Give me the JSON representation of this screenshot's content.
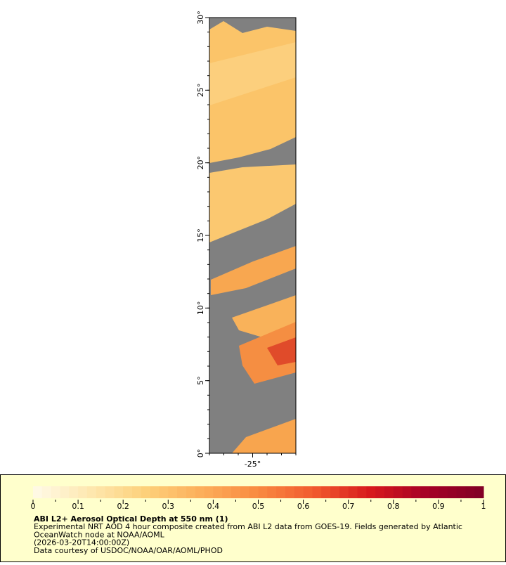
{
  "map": {
    "ylim": [
      0,
      30
    ],
    "xlim": [
      -28,
      -22
    ],
    "yticks": [
      {
        "value": 0,
        "label": "0°"
      },
      {
        "value": 5,
        "label": "5°"
      },
      {
        "value": 10,
        "label": "10°"
      },
      {
        "value": 15,
        "label": "15°"
      },
      {
        "value": 20,
        "label": "20°"
      },
      {
        "value": 25,
        "label": "25°"
      },
      {
        "value": 30,
        "label": "30°"
      }
    ],
    "xticks": [
      {
        "value": -25,
        "label": "-25°"
      }
    ]
  },
  "colorbar": {
    "range": [
      0,
      1
    ],
    "ticks": [
      0,
      0.1,
      0.2,
      0.3,
      0.4,
      0.5,
      0.6,
      0.7,
      0.8,
      0.9,
      1
    ],
    "palette": [
      "#fffbe8",
      "#fee8b0",
      "#fdd07a",
      "#fcae5a",
      "#f98a40",
      "#f15a2e",
      "#d7191c",
      "#a50026",
      "#800026"
    ]
  },
  "legend": {
    "title": "ABI L2+ Aerosol Optical Depth at 550 nm (1)",
    "lines": [
      "Experimental NRT AOD 4 hour composite created from ABI L2 data from GOES-19. Fields generated by Atlantic",
      "OceanWatch node at NOAA/AOML",
      "(2026-03-20T14:00:00Z)",
      "Data courtesy of USDOC/NOAA/OAR/AOML/PHOD"
    ]
  }
}
